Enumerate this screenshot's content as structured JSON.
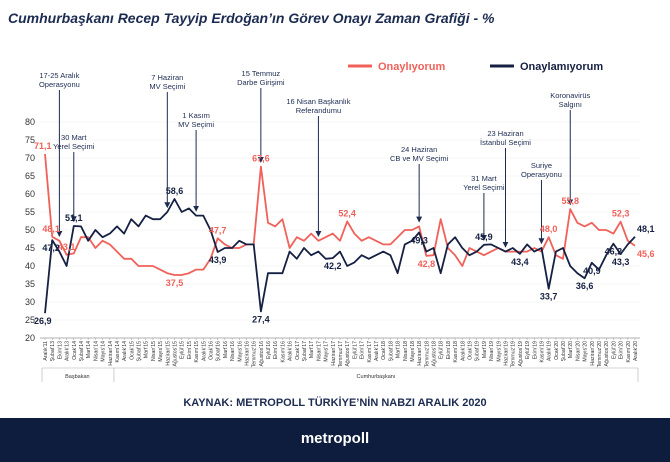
{
  "title": "Cumhurbaşkanı Recep Tayyip Erdoğan’ın Görev Onayı Zaman Grafiği - %",
  "source": "KAYNAK: METROPOLL TÜRKİYE’NİN NABZI ARALIK 2020",
  "brand": "metropoll",
  "colors": {
    "approve": "#f0615a",
    "disapprove": "#152042",
    "navy": "#1c2b50",
    "footer": "#0e1c3d"
  },
  "chart_data": {
    "type": "line",
    "ylim": [
      20,
      80
    ],
    "yticks": [
      "20",
      "25",
      "30",
      "35",
      "40",
      "45",
      "50",
      "55",
      "60",
      "65",
      "70",
      "75",
      "80"
    ],
    "x": [
      "Aralık'11",
      "Şubat'13",
      "Ekim'13",
      "Aralık'13",
      "Ocak'14",
      "Şubat'14",
      "Mart'14",
      "Nisan'14",
      "Mayıs'14",
      "Haziran'14",
      "Kasım'14",
      "Aralık'14",
      "Ocak'15",
      "Şubat'15",
      "Mart'15",
      "Nisan'15",
      "Mayıs'15",
      "Haziran'15",
      "Ağustos'15",
      "Eylül'15",
      "Ekim'15",
      "Kasım'15",
      "Aralık'15",
      "Ocak'16",
      "Şubat'16",
      "Mart'16",
      "Nisan'16",
      "Mayıs'16",
      "Haziran'16",
      "Temmuz'16",
      "Ağustos'16",
      "Eylül'16",
      "Ekim'16",
      "Kasım'16",
      "Aralık'16",
      "Ocak'17",
      "Şubat'17",
      "Mart'17",
      "Nisan'17",
      "Mayıs'17",
      "Haziran'17",
      "Temmuz'17",
      "Ağustos'17",
      "Eylül'17",
      "Ekim'17",
      "Kasım'17",
      "Aralık'17",
      "Ocak'18",
      "Şubat'18",
      "Mart'18",
      "Nisan'18",
      "Mayıs'18",
      "Haziran'18",
      "Temmuz'18",
      "Ağustos'18",
      "Eylül'18",
      "Ekim'18",
      "Kasım'18",
      "Aralık'18",
      "Ocak'19",
      "Şubat'19",
      "Mart'19",
      "Nisan'19",
      "Mayıs'19",
      "Haziran'19",
      "Temmuz'19",
      "Ağustos'19",
      "Eylül'19",
      "Ekim'19",
      "Kasım'19",
      "Aralık'19",
      "Ocak'20",
      "Şubat'20",
      "Mart'20",
      "Nisan'20",
      "Mayıs'20",
      "Haziran'20",
      "Temmuz'20",
      "Ağustos'20",
      "Eylül'20",
      "Ekim'20",
      "Kasım'20",
      "Aralık'20"
    ],
    "period_labels": [
      {
        "label": "Başbakan",
        "from": 0,
        "to": 9
      },
      {
        "label": "Cumhurbaşkanı",
        "from": 10,
        "to": 82
      }
    ],
    "series": [
      {
        "name": "Onaylıyorum",
        "color": "#f0615a",
        "values": [
          71.1,
          48.1,
          47.0,
          43.1,
          43.5,
          48.0,
          48.0,
          45.0,
          47.0,
          46.0,
          44.0,
          42.0,
          42.0,
          40.0,
          40.0,
          40.0,
          39.0,
          38.0,
          37.5,
          37.5,
          38.0,
          39.0,
          39.0,
          42.0,
          47.7,
          46.0,
          45.0,
          45.0,
          46.0,
          46.0,
          67.6,
          52.0,
          51.0,
          53.0,
          45.0,
          48.0,
          47.0,
          49.0,
          47.0,
          48.0,
          49.0,
          47.0,
          52.4,
          49.0,
          47.0,
          48.0,
          47.0,
          46.0,
          46.0,
          48.0,
          50.0,
          50.0,
          51.0,
          42.8,
          43.0,
          53.0,
          45.0,
          43.0,
          40.0,
          45.0,
          44.0,
          43.0,
          44.0,
          45.0,
          44.0,
          44.0,
          44.0,
          44.0,
          45.0,
          44.0,
          48.0,
          43.0,
          42.0,
          55.8,
          52.0,
          51.0,
          52.0,
          50.0,
          50.0,
          49.0,
          52.3,
          47.0,
          45.6
        ]
      },
      {
        "name": "Onaylamıyorum",
        "color": "#152042",
        "values": [
          26.9,
          47.2,
          44.0,
          40.0,
          51.1,
          51.0,
          47.0,
          50.0,
          48.0,
          49.0,
          51.0,
          49.0,
          53.0,
          51.0,
          54.0,
          53.0,
          53.0,
          55.0,
          58.6,
          55.0,
          56.0,
          54.0,
          54.0,
          50.0,
          43.9,
          45.0,
          45.0,
          47.0,
          46.0,
          46.0,
          27.4,
          38.0,
          38.0,
          38.0,
          44.0,
          42.0,
          45.0,
          43.0,
          44.0,
          42.0,
          42.2,
          44.0,
          40.0,
          41.0,
          43.0,
          42.0,
          43.0,
          44.0,
          43.0,
          38.0,
          46.0,
          47.0,
          49.3,
          44.0,
          45.0,
          38.0,
          46.0,
          48.0,
          45.0,
          43.0,
          44.0,
          45.9,
          46.0,
          45.0,
          44.0,
          45.0,
          43.4,
          46.0,
          44.0,
          45.0,
          33.7,
          44.0,
          45.0,
          40.0,
          38.0,
          36.6,
          40.9,
          39.0,
          43.0,
          46.2,
          43.3,
          46.0,
          48.1
        ]
      }
    ],
    "data_labels": [
      {
        "series": 0,
        "index": 0,
        "text": "71,1"
      },
      {
        "series": 0,
        "index": 1,
        "text": "48,1"
      },
      {
        "series": 0,
        "index": 3,
        "text": "43,1"
      },
      {
        "series": 0,
        "index": 18,
        "text": "37,5"
      },
      {
        "series": 0,
        "index": 24,
        "text": "47,7"
      },
      {
        "series": 0,
        "index": 30,
        "text": "67,6"
      },
      {
        "series": 0,
        "index": 42,
        "text": "52,4"
      },
      {
        "series": 0,
        "index": 53,
        "text": "42,8"
      },
      {
        "series": 0,
        "index": 70,
        "text": "48,0"
      },
      {
        "series": 0,
        "index": 73,
        "text": "55,8"
      },
      {
        "series": 0,
        "index": 80,
        "text": "52,3"
      },
      {
        "series": 0,
        "index": 82,
        "text": "45,6"
      },
      {
        "series": 1,
        "index": 0,
        "text": "26,9"
      },
      {
        "series": 1,
        "index": 1,
        "text": "47,2"
      },
      {
        "series": 1,
        "index": 4,
        "text": "51,1"
      },
      {
        "series": 1,
        "index": 18,
        "text": "58,6"
      },
      {
        "series": 1,
        "index": 24,
        "text": "43,9"
      },
      {
        "series": 1,
        "index": 30,
        "text": "27,4"
      },
      {
        "series": 1,
        "index": 40,
        "text": "42,2"
      },
      {
        "series": 1,
        "index": 52,
        "text": "49,3"
      },
      {
        "series": 1,
        "index": 61,
        "text": "45,9"
      },
      {
        "series": 1,
        "index": 66,
        "text": "43,4"
      },
      {
        "series": 1,
        "index": 70,
        "text": "33,7"
      },
      {
        "series": 1,
        "index": 75,
        "text": "36,6"
      },
      {
        "series": 1,
        "index": 76,
        "text": "40,9"
      },
      {
        "series": 1,
        "index": 79,
        "text": "46,2"
      },
      {
        "series": 1,
        "index": 80,
        "text": "43,3"
      },
      {
        "series": 1,
        "index": 82,
        "text": "48,1"
      }
    ],
    "annotations": [
      {
        "lines": [
          "17-25 Aralık",
          "Operasyonu"
        ],
        "index": 2
      },
      {
        "lines": [
          "30 Mart",
          "Yerel Seçimi"
        ],
        "index": 4
      },
      {
        "lines": [
          "7 Haziran",
          "MV Seçimi"
        ],
        "index": 17
      },
      {
        "lines": [
          "1 Kasım",
          "MV Seçimi"
        ],
        "index": 21
      },
      {
        "lines": [
          "15 Temmuz",
          "Darbe Girişimi"
        ],
        "index": 30
      },
      {
        "lines": [
          "16 Nisan Başkanlık",
          "Referandumu"
        ],
        "index": 38
      },
      {
        "lines": [
          "24 Haziran",
          "CB  ve MV Seçimi"
        ],
        "index": 52
      },
      {
        "lines": [
          "31 Mart",
          "Yerel Seçimi"
        ],
        "index": 61
      },
      {
        "lines": [
          "23 Haziran",
          "İstanbul Seçimi"
        ],
        "index": 64
      },
      {
        "lines": [
          "Suriye",
          "Operasyonu"
        ],
        "index": 69
      },
      {
        "lines": [
          "Koronavirüs",
          "Salgını"
        ],
        "index": 73
      }
    ],
    "legend": {
      "position": "top-right",
      "entries": [
        "Onaylıyorum",
        "Onaylamıyorum"
      ]
    }
  }
}
